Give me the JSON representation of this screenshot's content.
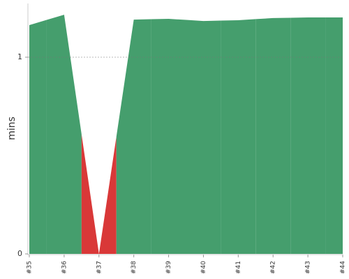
{
  "chart_data": {
    "type": "area",
    "y_label": "mins",
    "categories": [
      "#35",
      "#36",
      "#37",
      "#38",
      "#39",
      "#40",
      "#41",
      "#42",
      "#43",
      "#44"
    ],
    "values": [
      1.163,
      1.216,
      0,
      1.191,
      1.195,
      1.184,
      1.188,
      1.199,
      1.202,
      1.202
    ],
    "colors": [
      "#459e6d",
      "#459e6d",
      "#d93838",
      "#459e6d",
      "#459e6d",
      "#459e6d",
      "#459e6d",
      "#459e6d",
      "#459e6d",
      "#459e6d"
    ],
    "ylim": [
      0,
      1.273
    ],
    "yticks": [
      0,
      1
    ],
    "grid": true
  }
}
